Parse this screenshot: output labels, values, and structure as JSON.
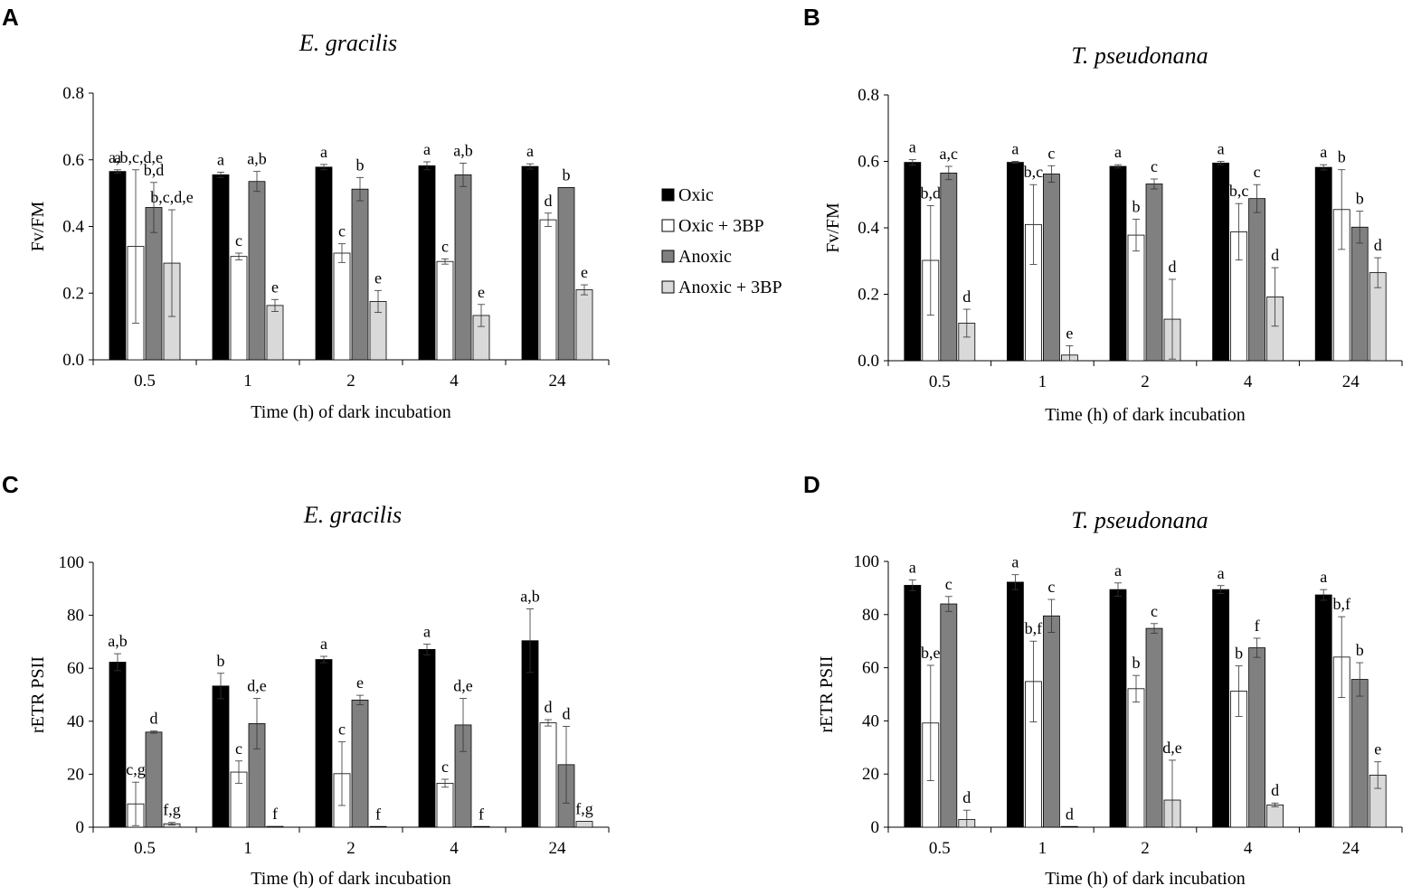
{
  "legend": {
    "items": [
      {
        "label": "Oxic",
        "color": "#000000"
      },
      {
        "label": "Oxic + 3BP",
        "color": "#ffffff"
      },
      {
        "label": "Anoxic",
        "color": "#808080"
      },
      {
        "label": "Anoxic + 3BP",
        "color": "#d9d9d9"
      }
    ]
  },
  "chart_data": [
    {
      "panel": "A",
      "type": "bar",
      "title": "E. gracilis",
      "xlabel": "Time (h) of dark incubation",
      "ylabel": "Fv/FM",
      "ylim": [
        0,
        0.8
      ],
      "yticks": [
        "0.0",
        "0.2",
        "0.4",
        "0.6",
        "0.8"
      ],
      "categories": [
        "0.5",
        "1",
        "2",
        "4",
        "24"
      ],
      "series": [
        {
          "name": "Oxic",
          "color": "#000000",
          "values": [
            0.565,
            0.555,
            0.578,
            0.582,
            0.58
          ],
          "errors": [
            0.005,
            0.008,
            0.008,
            0.012,
            0.008
          ],
          "labels": [
            "a",
            "a",
            "a",
            "a",
            "a"
          ]
        },
        {
          "name": "Oxic + 3BP",
          "color": "#ffffff",
          "values": [
            0.34,
            0.31,
            0.32,
            0.295,
            0.42
          ],
          "errors": [
            0.23,
            0.01,
            0.028,
            0.008,
            0.02
          ],
          "labels": [
            "a,b,c,d,e",
            "c",
            "c",
            "c",
            "d"
          ]
        },
        {
          "name": "Anoxic",
          "color": "#808080",
          "values": [
            0.457,
            0.535,
            0.512,
            0.555,
            0.517
          ],
          "errors": [
            0.075,
            0.03,
            0.035,
            0.035,
            0
          ],
          "labels": [
            "b,d",
            "a,b",
            "b",
            "a,b",
            "b"
          ]
        },
        {
          "name": "Anoxic + 3BP",
          "color": "#d9d9d9",
          "values": [
            0.29,
            0.163,
            0.175,
            0.133,
            0.21
          ],
          "errors": [
            0.16,
            0.018,
            0.033,
            0.033,
            0.015
          ],
          "labels": [
            "b,c,d,e",
            "e",
            "e",
            "e",
            "e"
          ]
        }
      ]
    },
    {
      "panel": "B",
      "type": "bar",
      "title": "T. pseudonana",
      "xlabel": "Time (h) of dark incubation",
      "ylabel": "Fv/FM",
      "ylim": [
        0,
        0.8
      ],
      "yticks": [
        "0.0",
        "0.2",
        "0.4",
        "0.6",
        "0.8"
      ],
      "categories": [
        "0.5",
        "1",
        "2",
        "4",
        "24"
      ],
      "series": [
        {
          "name": "Oxic",
          "color": "#000000",
          "values": [
            0.597,
            0.597,
            0.585,
            0.595,
            0.582
          ],
          "errors": [
            0.008,
            0.003,
            0.005,
            0.005,
            0.008
          ],
          "labels": [
            "a",
            "a",
            "a",
            "a",
            "a"
          ]
        },
        {
          "name": "Oxic + 3BP",
          "color": "#ffffff",
          "values": [
            0.302,
            0.41,
            0.378,
            0.388,
            0.455
          ],
          "errors": [
            0.165,
            0.12,
            0.048,
            0.085,
            0.12
          ],
          "labels": [
            "b,d",
            "b,c",
            "b",
            "b,c",
            "b"
          ]
        },
        {
          "name": "Anoxic",
          "color": "#808080",
          "values": [
            0.565,
            0.562,
            0.532,
            0.488,
            0.402
          ],
          "errors": [
            0.02,
            0.025,
            0.015,
            0.042,
            0.048
          ],
          "labels": [
            "a,c",
            "c",
            "c",
            "c",
            "b"
          ]
        },
        {
          "name": "Anoxic + 3BP",
          "color": "#d9d9d9",
          "values": [
            0.113,
            0.017,
            0.125,
            0.192,
            0.265
          ],
          "errors": [
            0.042,
            0.028,
            0.12,
            0.088,
            0.045
          ],
          "labels": [
            "d",
            "e",
            "d",
            "d",
            "d"
          ]
        }
      ]
    },
    {
      "panel": "C",
      "type": "bar",
      "title": "E. gracilis",
      "xlabel": "Time (h) of dark incubation",
      "ylabel": "rETR PSII",
      "ylim": [
        0,
        100
      ],
      "yticks": [
        "0",
        "20",
        "40",
        "60",
        "80",
        "100"
      ],
      "categories": [
        "0.5",
        "1",
        "2",
        "4",
        "24"
      ],
      "series": [
        {
          "name": "Oxic",
          "color": "#000000",
          "values": [
            62.3,
            53.3,
            63.3,
            67.1,
            70.4
          ],
          "errors": [
            3.2,
            4.8,
            1.2,
            2.0,
            12.0
          ],
          "labels": [
            "a,b",
            "b",
            "a",
            "a",
            "a,b"
          ]
        },
        {
          "name": "Oxic + 3BP",
          "color": "#ffffff",
          "values": [
            8.8,
            20.8,
            20.2,
            16.6,
            39.4
          ],
          "errors": [
            8.2,
            4.2,
            12.0,
            1.5,
            1.2
          ],
          "labels": [
            "c,g",
            "c",
            "c",
            "c",
            "d"
          ]
        },
        {
          "name": "Anoxic",
          "color": "#808080",
          "values": [
            35.9,
            39.1,
            48.0,
            38.6,
            23.6
          ],
          "errors": [
            0.4,
            9.5,
            1.8,
            10.0,
            14.5
          ],
          "labels": [
            "d",
            "d,e",
            "e",
            "d,e",
            "d"
          ]
        },
        {
          "name": "Anoxic + 3BP",
          "color": "#d9d9d9",
          "values": [
            1.3,
            0.3,
            0.1,
            0.1,
            2.2
          ],
          "errors": [
            0.5,
            0,
            0,
            0,
            0
          ],
          "labels": [
            "f,g",
            "f",
            "f",
            "f",
            "f,g"
          ]
        }
      ]
    },
    {
      "panel": "D",
      "type": "bar",
      "title": "T. pseudonana",
      "xlabel": "Time (h) of dark incubation",
      "ylabel": "rETR PSII",
      "ylim": [
        0,
        100
      ],
      "yticks": [
        "0",
        "20",
        "40",
        "60",
        "80",
        "100"
      ],
      "categories": [
        "0.5",
        "1",
        "2",
        "4",
        "24"
      ],
      "series": [
        {
          "name": "Oxic",
          "color": "#000000",
          "values": [
            91.0,
            92.2,
            89.4,
            89.4,
            87.4
          ],
          "errors": [
            2.0,
            2.8,
            2.5,
            1.5,
            2.0
          ],
          "labels": [
            "a",
            "a",
            "a",
            "a",
            "a"
          ]
        },
        {
          "name": "Oxic + 3BP",
          "color": "#ffffff",
          "values": [
            39.2,
            54.8,
            52.1,
            51.2,
            64.0
          ],
          "errors": [
            21.7,
            15.2,
            5.0,
            9.5,
            15.2
          ],
          "labels": [
            "b,e",
            "b,f",
            "b",
            "b",
            "b,f"
          ]
        },
        {
          "name": "Anoxic",
          "color": "#808080",
          "values": [
            84.0,
            79.5,
            74.8,
            67.5,
            55.6
          ],
          "errors": [
            2.8,
            6.2,
            1.8,
            3.6,
            6.3
          ],
          "labels": [
            "c",
            "c",
            "c",
            "f",
            "b"
          ]
        },
        {
          "name": "Anoxic + 3BP",
          "color": "#d9d9d9",
          "values": [
            2.9,
            0.1,
            10.2,
            8.4,
            19.6
          ],
          "errors": [
            3.5,
            0,
            15.0,
            0.7,
            5.0
          ],
          "labels": [
            "d",
            "d",
            "d,e",
            "d",
            "e"
          ]
        }
      ]
    }
  ]
}
